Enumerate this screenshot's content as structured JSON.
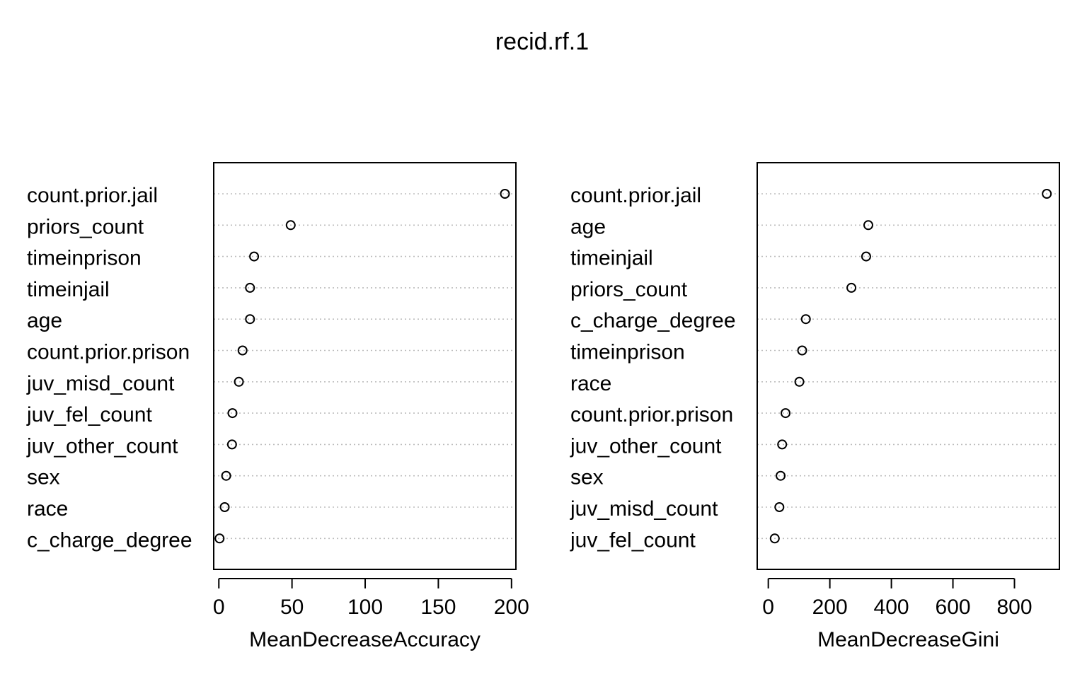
{
  "title": "recid.rf.1",
  "chart_data": [
    {
      "type": "scatter",
      "subtype": "dotchart",
      "xlabel": "MeanDecreaseAccuracy",
      "xlim": [
        -3.5,
        203
      ],
      "xticks": [
        0,
        50,
        100,
        150,
        200
      ],
      "grid": "dotted horizontal",
      "categories": [
        "count.prior.jail",
        "priors_count",
        "timeinprison",
        "timeinjail",
        "age",
        "count.prior.prison",
        "juv_misd_count",
        "juv_fel_count",
        "juv_other_count",
        "sex",
        "race",
        "c_charge_degree"
      ],
      "values": [
        195.5,
        49.1,
        24.1,
        21.3,
        21.3,
        16.2,
        13.7,
        9.3,
        9.0,
        5.0,
        4.0,
        0.5
      ]
    },
    {
      "type": "scatter",
      "subtype": "dotchart",
      "xlabel": "MeanDecreaseGini",
      "xlim": [
        -36,
        946
      ],
      "xticks": [
        0,
        200,
        400,
        600,
        800
      ],
      "grid": "dotted horizontal",
      "categories": [
        "count.prior.jail",
        "age",
        "timeinjail",
        "priors_count",
        "c_charge_degree",
        "timeinprison",
        "race",
        "count.prior.prison",
        "juv_other_count",
        "sex",
        "juv_misd_count",
        "juv_fel_count"
      ],
      "values": [
        905,
        325,
        318,
        270,
        122,
        110,
        101,
        56,
        45,
        40,
        36,
        21
      ]
    }
  ]
}
